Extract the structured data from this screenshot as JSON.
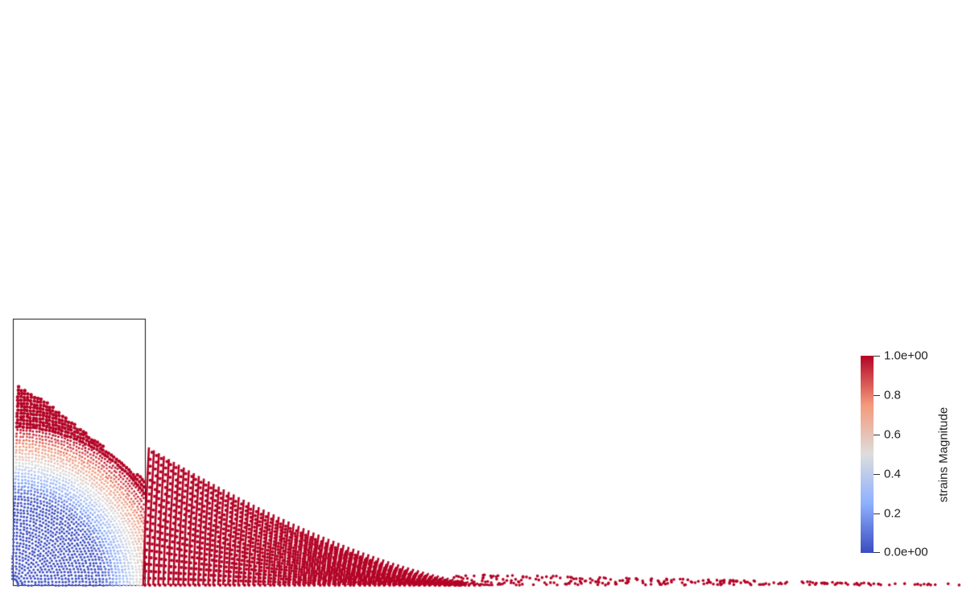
{
  "legend": {
    "title": "strains Magnitude",
    "ticks": [
      {
        "label": "1.0e+00",
        "value": 1.0
      },
      {
        "label": "0.8",
        "value": 0.8
      },
      {
        "label": "0.6",
        "value": 0.6
      },
      {
        "label": "0.4",
        "value": 0.4
      },
      {
        "label": "0.2",
        "value": 0.2
      },
      {
        "label": "0.0e+00",
        "value": 0.0
      }
    ],
    "range": [
      0.0,
      1.0
    ],
    "colormap": [
      "#3b4cc0",
      "#8db0fe",
      "#dddddd",
      "#f49a7b",
      "#b40426"
    ]
  },
  "scene": {
    "particle_color_high": "#b40426",
    "particle_color_low": "#3b4cc0",
    "box_outline_color": "#000000"
  }
}
